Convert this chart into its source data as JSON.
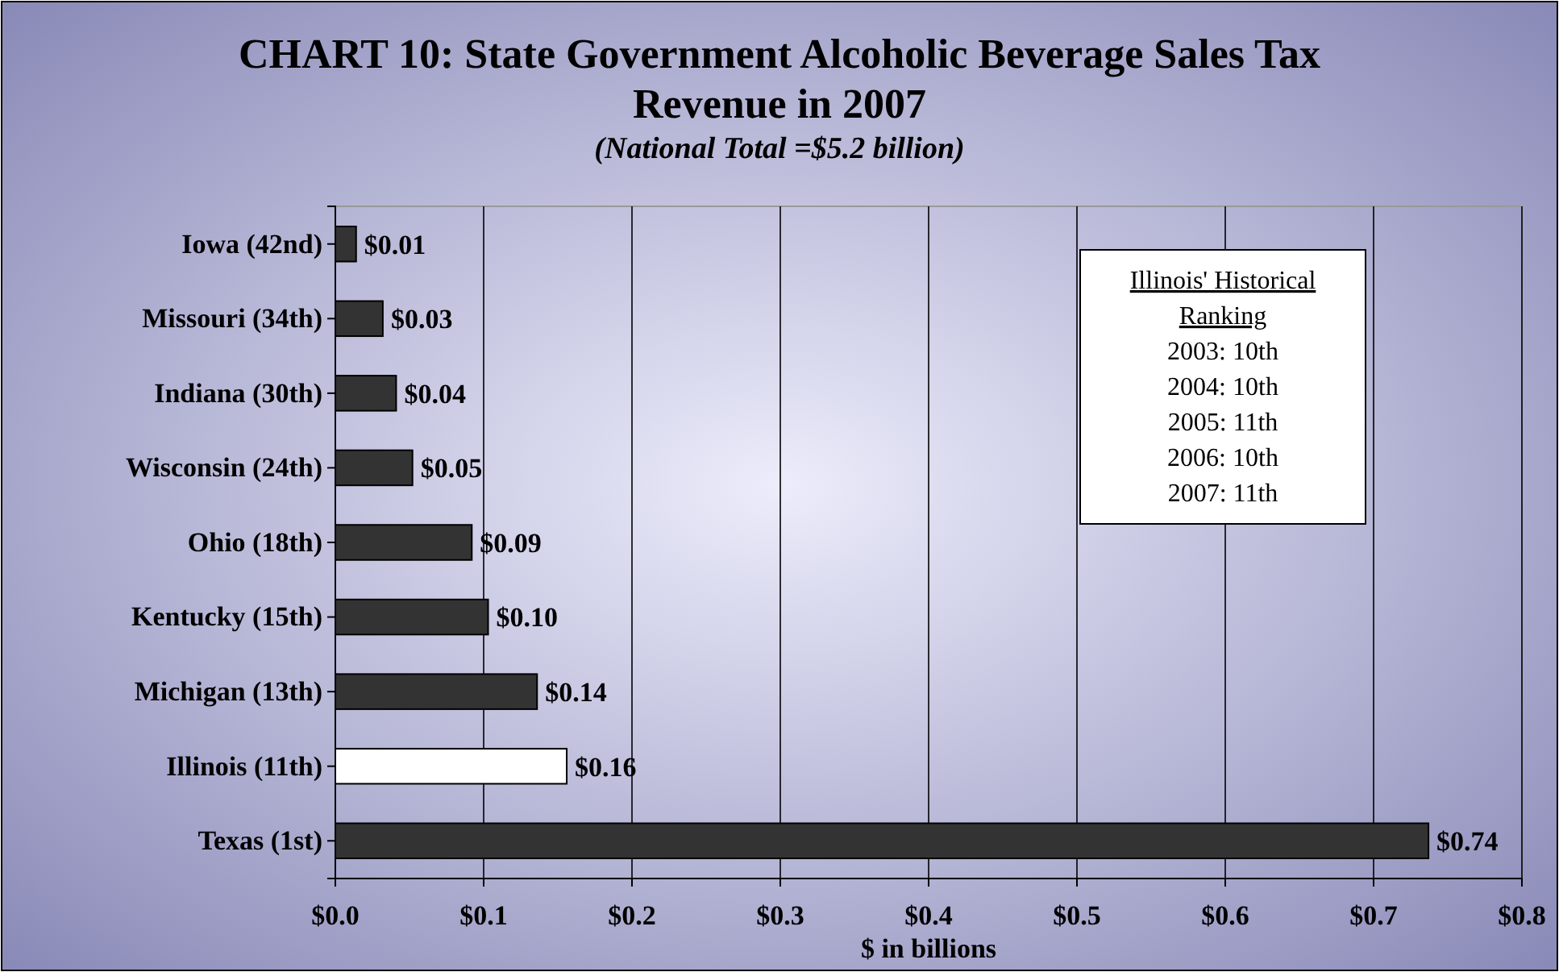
{
  "chart_data": {
    "type": "bar",
    "orientation": "horizontal",
    "title": "CHART 10: State Government Alcoholic Beverage Sales Tax Revenue in 2007",
    "subtitle": "(National Total =$5.2 billion)",
    "xlabel": "$ in billions",
    "categories": [
      "Iowa (42nd)",
      "Missouri (34th)",
      "Indiana (30th)",
      "Wisconsin (24th)",
      "Ohio (18th)",
      "Kentucky (15th)",
      "Michigan (13th)",
      "Illinois (11th)",
      "Texas (1st)"
    ],
    "values": [
      0.014,
      0.032,
      0.041,
      0.052,
      0.092,
      0.103,
      0.136,
      0.156,
      0.737
    ],
    "value_labels": [
      "$0.01",
      "$0.03",
      "$0.04",
      "$0.05",
      "$0.09",
      "$0.10",
      "$0.14",
      "$0.16",
      "$0.74"
    ],
    "colors": [
      "#333333",
      "#333333",
      "#333333",
      "#333333",
      "#333333",
      "#333333",
      "#333333",
      "#ffffff",
      "#333333"
    ],
    "xlim": [
      0,
      0.8
    ],
    "xticks": [
      {
        "value": 0,
        "label": "$0.0"
      },
      {
        "value": 0.1,
        "label": "$0.1"
      },
      {
        "value": 0.2,
        "label": "$0.2"
      },
      {
        "value": 0.3,
        "label": "$0.3"
      },
      {
        "value": 0.4,
        "label": "$0.4"
      },
      {
        "value": 0.5,
        "label": "$0.5"
      },
      {
        "value": 0.6,
        "label": "$0.6"
      },
      {
        "value": 0.7,
        "label": "$0.7"
      },
      {
        "value": 0.8,
        "label": "$0.8"
      }
    ],
    "grid": "x",
    "annotations": [
      "Illinois' Historical Ranking",
      "2003: 10th",
      "2004: 10th",
      "2005: 11th",
      "2006: 10th",
      "2007: 11th"
    ]
  }
}
